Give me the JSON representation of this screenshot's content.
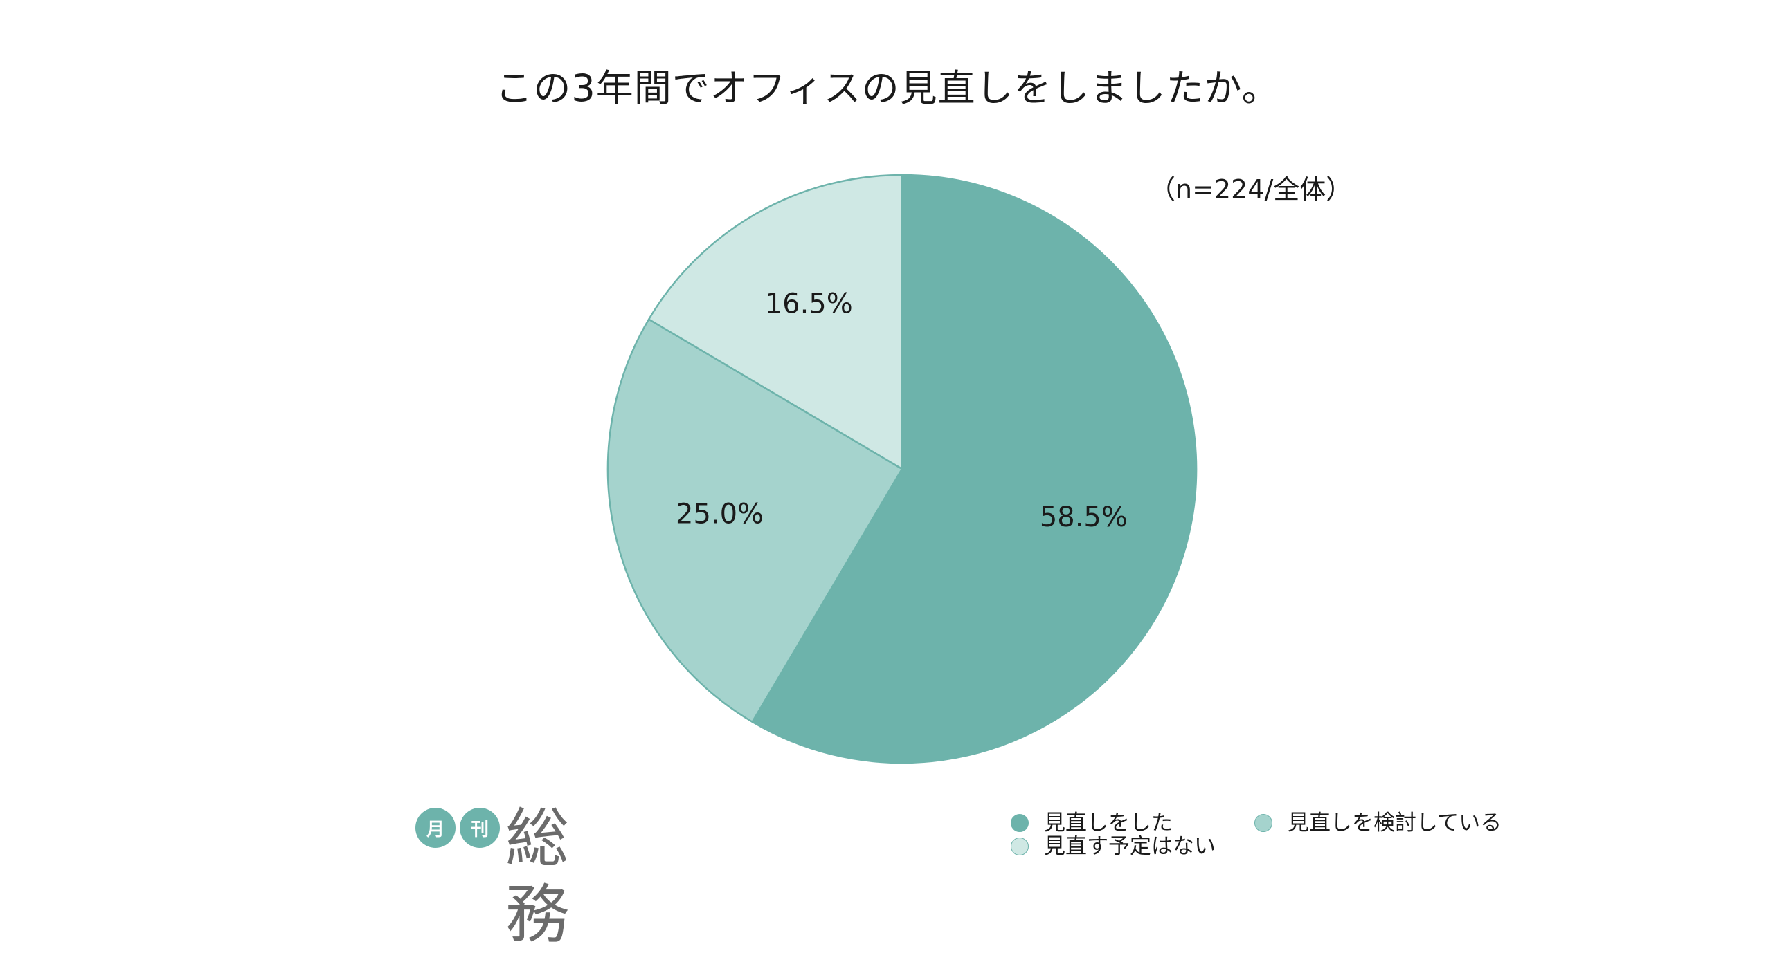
{
  "title": "この3年間でオフィスの見直しをしましたか。",
  "sample_note": "（n=224/全体）",
  "logo": {
    "badge_1": "月",
    "badge_2": "刊",
    "word": "総務"
  },
  "colors": {
    "slice_dark": "#6db3ab",
    "slice_mid": "#a5d3cd",
    "slice_light": "#cfe8e4",
    "stroke": "#6db3ab"
  },
  "chart_data": {
    "type": "pie",
    "title": "この3年間でオフィスの見直しをしましたか。",
    "categories": [
      "見直しをした",
      "見直しを検討している",
      "見直す予定はない"
    ],
    "values": [
      58.5,
      25.0,
      16.5
    ],
    "labels": [
      "58.5%",
      "25.0%",
      "16.5%"
    ],
    "colors": [
      "#6db3ab",
      "#a5d3cd",
      "#cfe8e4"
    ],
    "start": "12 o'clock, clockwise",
    "legend_position": "bottom-right"
  }
}
